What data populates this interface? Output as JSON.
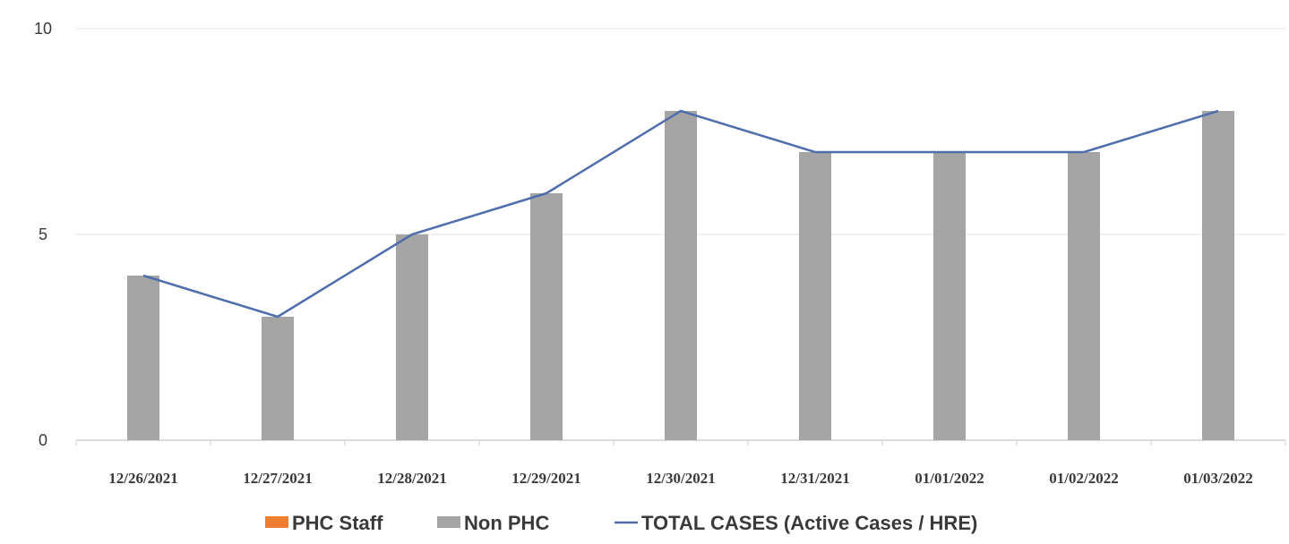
{
  "chart_data": {
    "type": "bar",
    "categories": [
      "12/26/2021",
      "12/27/2021",
      "12/28/2021",
      "12/29/2021",
      "12/30/2021",
      "12/31/2021",
      "01/01/2022",
      "01/02/2022",
      "01/03/2022"
    ],
    "series": [
      {
        "name": "PHC Staff",
        "type": "bar",
        "color": "#ed7d31",
        "values": [
          0,
          0,
          0,
          0,
          0,
          0,
          0,
          0,
          0
        ]
      },
      {
        "name": "Non PHC",
        "type": "bar",
        "color": "#a5a5a5",
        "values": [
          4,
          3,
          5,
          6,
          8,
          7,
          7,
          7,
          8
        ]
      },
      {
        "name": "TOTAL CASES  (Active Cases / HRE)",
        "type": "line",
        "color": "#4f6eab",
        "values": [
          4,
          3,
          5,
          6,
          8,
          7,
          7,
          7,
          8
        ]
      }
    ],
    "title": "",
    "xlabel": "",
    "ylabel": "",
    "ylim": [
      0,
      10
    ],
    "yticks": [
      0,
      5,
      10
    ],
    "grid": true,
    "legend_position": "bottom"
  }
}
